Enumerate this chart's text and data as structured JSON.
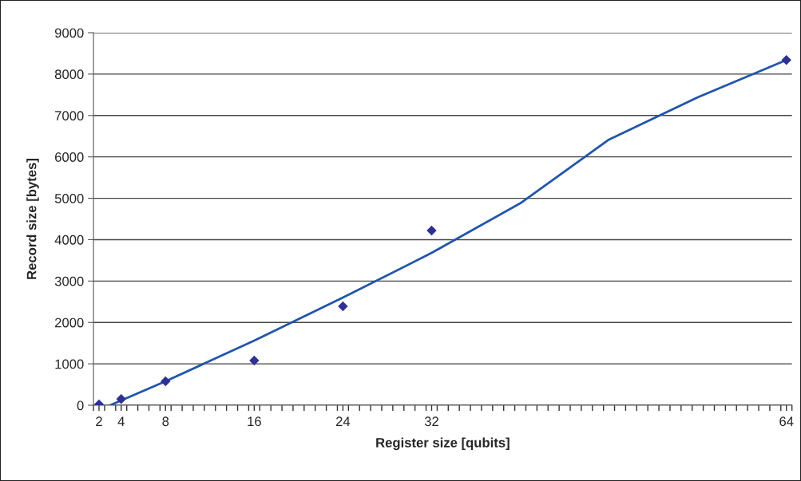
{
  "chart_data": {
    "type": "scatter",
    "xlabel": "Register size [qubits]",
    "ylabel": "Record size [bytes]",
    "series": [
      {
        "color": "#2e3192",
        "marker": "diamond",
        "x": [
          2,
          4,
          8,
          16,
          24,
          32,
          64
        ],
        "values": [
          20,
          150,
          580,
          1080,
          2390,
          4220,
          8340
        ]
      },
      {
        "type": "line",
        "color": "#2255aa",
        "marker": "none",
        "line_style": "solid",
        "x": [
          3,
          8,
          16,
          24,
          32,
          40,
          48,
          56,
          64
        ],
        "values": [
          0,
          580,
          1560,
          2600,
          3680,
          4880,
          6420,
          7440,
          8340
        ]
      }
    ],
    "xlim": [
      1.5,
      64.5
    ],
    "xticks": [
      {
        "value": 1.5,
        "label": null
      },
      2,
      {
        "value": 2.5,
        "label": null
      },
      {
        "value": 3.5,
        "label": null
      },
      4,
      {
        "value": 4.5,
        "label": null
      },
      {
        "value": 5.5,
        "label": null
      },
      {
        "value": 6.5,
        "label": null
      },
      {
        "value": 7.5,
        "label": null
      },
      8,
      {
        "value": 8.5,
        "label": null
      },
      {
        "value": 9.5,
        "label": null
      },
      {
        "value": 10.5,
        "label": null
      },
      {
        "value": 11.5,
        "label": null
      },
      {
        "value": 12.5,
        "label": null
      },
      {
        "value": 13.5,
        "label": null
      },
      {
        "value": 14.5,
        "label": null
      },
      {
        "value": 15.5,
        "label": null
      },
      16,
      {
        "value": 16.5,
        "label": null
      },
      {
        "value": 17.5,
        "label": null
      },
      {
        "value": 18.5,
        "label": null
      },
      {
        "value": 19.5,
        "label": null
      },
      {
        "value": 20.5,
        "label": null
      },
      {
        "value": 21.5,
        "label": null
      },
      {
        "value": 22.5,
        "label": null
      },
      {
        "value": 23.5,
        "label": null
      },
      24,
      {
        "value": 24.5,
        "label": null
      },
      {
        "value": 25.5,
        "label": null
      },
      {
        "value": 26.5,
        "label": null
      },
      {
        "value": 27.5,
        "label": null
      },
      {
        "value": 28.5,
        "label": null
      },
      {
        "value": 29.5,
        "label": null
      },
      {
        "value": 30.5,
        "label": null
      },
      {
        "value": 31.5,
        "label": null
      },
      32,
      {
        "value": 32.5,
        "label": null
      },
      {
        "value": 33.5,
        "label": null
      },
      {
        "value": 34.5,
        "label": null
      },
      {
        "value": 35.5,
        "label": null
      },
      {
        "value": 36.5,
        "label": null
      },
      {
        "value": 37.5,
        "label": null
      },
      {
        "value": 38.5,
        "label": null
      },
      {
        "value": 39.5,
        "label": null
      },
      {
        "value": 40.5,
        "label": null
      },
      {
        "value": 41.5,
        "label": null
      },
      {
        "value": 42.5,
        "label": null
      },
      {
        "value": 43.5,
        "label": null
      },
      {
        "value": 44.5,
        "label": null
      },
      {
        "value": 45.5,
        "label": null
      },
      {
        "value": 46.5,
        "label": null
      },
      {
        "value": 47.5,
        "label": null
      },
      {
        "value": 48.5,
        "label": null
      },
      {
        "value": 49.5,
        "label": null
      },
      {
        "value": 50.5,
        "label": null
      },
      {
        "value": 51.5,
        "label": null
      },
      {
        "value": 52.5,
        "label": null
      },
      {
        "value": 53.5,
        "label": null
      },
      {
        "value": 54.5,
        "label": null
      },
      {
        "value": 55.5,
        "label": null
      },
      {
        "value": 56.5,
        "label": null
      },
      {
        "value": 57.5,
        "label": null
      },
      {
        "value": 58.5,
        "label": null
      },
      {
        "value": 59.5,
        "label": null
      },
      {
        "value": 60.5,
        "label": null
      },
      {
        "value": 61.5,
        "label": null
      },
      {
        "value": 62.5,
        "label": null
      },
      {
        "value": 63.5,
        "label": null
      },
      64,
      {
        "value": 64.5,
        "label": null
      }
    ],
    "ylim": [
      0,
      9000
    ],
    "yticks": [
      0,
      1000,
      2000,
      3000,
      4000,
      5000,
      6000,
      7000,
      8000,
      9000
    ],
    "grid": "y",
    "legend": false
  }
}
